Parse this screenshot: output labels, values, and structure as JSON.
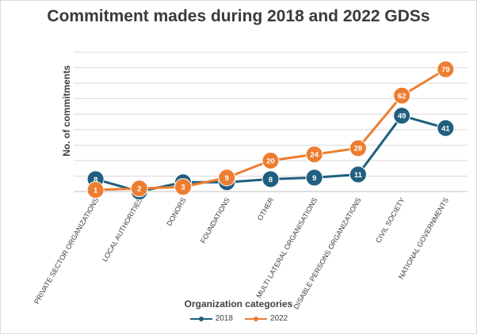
{
  "chart_data": {
    "type": "line",
    "title": "Commitment mades during 2018 and 2022 GDSs",
    "xlabel": "Organization categories",
    "ylabel": "No. of commitments",
    "categories": [
      "PRIVATE SECTOR ORGANIZATIONS",
      "LOCAL AUTHORITIES",
      "DONORS",
      "FOUNDATIONS",
      "OTHER",
      "MULTI LATERAL ORGANISATIONS",
      "DISABLE PERSONS ORGANIZATIONS",
      "CIVIL SOCIETY",
      "NATIONAL GOVERNMENTS"
    ],
    "series": [
      {
        "name": "2018",
        "color": "#1f5f7f",
        "values": [
          8,
          0,
          6,
          6,
          8,
          9,
          11,
          49,
          41
        ]
      },
      {
        "name": "2022",
        "color": "#ed7d31",
        "values": [
          1,
          2,
          3,
          9,
          20,
          24,
          28,
          62,
          79
        ]
      }
    ],
    "ylim": [
      0,
      90
    ],
    "grid": true,
    "legend_position": "bottom",
    "data_labels": true
  }
}
